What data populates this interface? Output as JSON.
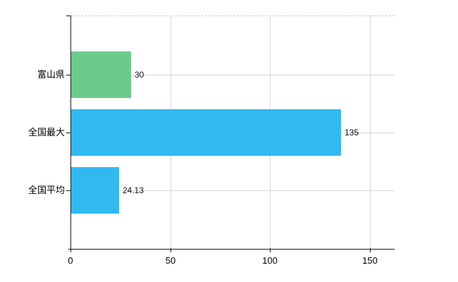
{
  "chart_data": {
    "type": "bar",
    "orientation": "horizontal",
    "title": "",
    "categories": [
      "富山県",
      "全国最大",
      "全国平均"
    ],
    "values": [
      30,
      135,
      24.13
    ],
    "value_labels": [
      "30",
      "135",
      "24.13"
    ],
    "series": [
      {
        "name": "",
        "values": [
          30,
          135,
          24.13
        ]
      }
    ],
    "bar_colors": [
      "#6bcb8c",
      "#31b9f2",
      "#31b9f2"
    ],
    "x_ticks": [
      0,
      50,
      100,
      150
    ],
    "x_tick_labels": [
      "0",
      "50",
      "100",
      "150"
    ],
    "xlim": [
      0,
      162
    ],
    "ylabel": "",
    "xlabel": "",
    "grid": true,
    "legend_position": "none"
  },
  "colors": {
    "green_bar": "#6bcb8c",
    "blue_bar": "#31b9f2",
    "axis": "#1a1a1a",
    "gridline": "#d6d6d6",
    "top_border": "#c9c9c9",
    "text": "#000000"
  }
}
